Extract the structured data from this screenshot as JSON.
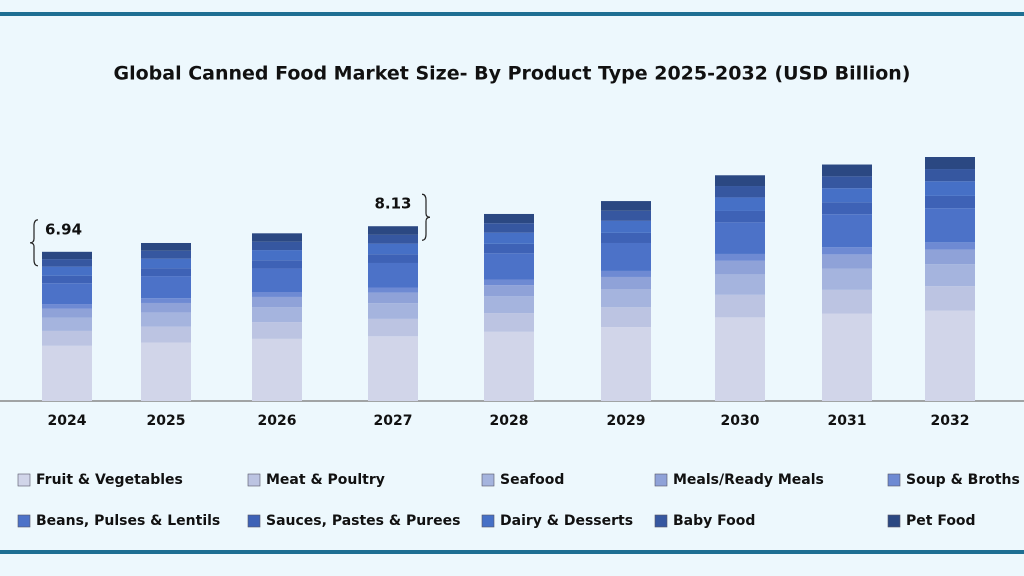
{
  "chart_data": {
    "type": "bar",
    "stacked": true,
    "title": "Global Canned Food Market Size- By Product Type 2025-2032 (USD Billion)",
    "categories": [
      "2024",
      "2025",
      "2026",
      "2027",
      "2028",
      "2029",
      "2030",
      "2031",
      "2032"
    ],
    "series": [
      {
        "name": "Fruit & Vegetables",
        "color": "#d1d5e9",
        "values": [
          2.57,
          2.72,
          2.89,
          3.01,
          3.22,
          3.44,
          3.89,
          4.07,
          4.2
        ]
      },
      {
        "name": "Meat & Poultry",
        "color": "#bcc4e2",
        "values": [
          0.69,
          0.74,
          0.78,
          0.81,
          0.87,
          0.93,
          1.05,
          1.1,
          1.14
        ]
      },
      {
        "name": "Seafood",
        "color": "#a5b4de",
        "values": [
          0.62,
          0.66,
          0.7,
          0.73,
          0.78,
          0.84,
          0.95,
          0.99,
          1.02
        ]
      },
      {
        "name": "Meals/Ready Meals",
        "color": "#8fa2d8",
        "values": [
          0.42,
          0.44,
          0.47,
          0.49,
          0.52,
          0.56,
          0.63,
          0.66,
          0.68
        ]
      },
      {
        "name": "Soup & Broths",
        "color": "#6e8ad3",
        "values": [
          0.21,
          0.22,
          0.23,
          0.24,
          0.26,
          0.28,
          0.32,
          0.33,
          0.34
        ]
      },
      {
        "name": "Beans, Pulses & Lentils",
        "color": "#4c72c8",
        "values": [
          0.97,
          1.03,
          1.09,
          1.14,
          1.22,
          1.3,
          1.47,
          1.54,
          1.59
        ]
      },
      {
        "name": "Sauces, Pastes & Purees",
        "color": "#3e62b6",
        "values": [
          0.35,
          0.37,
          0.39,
          0.41,
          0.44,
          0.47,
          0.53,
          0.55,
          0.57
        ]
      },
      {
        "name": "Dairy & Desserts",
        "color": "#4670c6",
        "values": [
          0.42,
          0.44,
          0.47,
          0.49,
          0.52,
          0.56,
          0.63,
          0.66,
          0.68
        ]
      },
      {
        "name": "Baby Food",
        "color": "#3657a0",
        "values": [
          0.35,
          0.37,
          0.39,
          0.41,
          0.44,
          0.47,
          0.53,
          0.55,
          0.57
        ]
      },
      {
        "name": "Pet Food",
        "color": "#2b4882",
        "values": [
          0.34,
          0.36,
          0.39,
          0.4,
          0.43,
          0.45,
          0.5,
          0.55,
          0.56
        ]
      }
    ],
    "annotations": [
      {
        "category": "2024",
        "value": 6.94
      },
      {
        "category": "2027",
        "value": 8.13
      }
    ]
  }
}
